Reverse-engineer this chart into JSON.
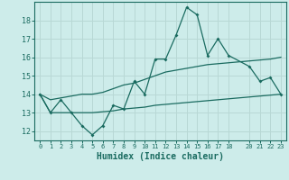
{
  "xlabel": "Humidex (Indice chaleur)",
  "bg_color": "#cdecea",
  "grid_color": "#b8d8d5",
  "line_color": "#1a6b60",
  "x_data": [
    0,
    1,
    2,
    3,
    4,
    5,
    6,
    7,
    8,
    9,
    10,
    11,
    12,
    13,
    14,
    15,
    16,
    17,
    18,
    20,
    21,
    22,
    23
  ],
  "y_main": [
    14.0,
    13.0,
    13.7,
    13.0,
    12.3,
    11.8,
    12.3,
    13.4,
    13.2,
    14.7,
    14.0,
    15.9,
    15.9,
    17.2,
    18.7,
    18.3,
    16.1,
    17.0,
    16.1,
    15.5,
    14.7,
    14.9,
    14.0
  ],
  "y_upper": [
    14.0,
    13.7,
    13.8,
    13.9,
    14.0,
    14.0,
    14.1,
    14.3,
    14.5,
    14.6,
    14.8,
    15.0,
    15.2,
    15.3,
    15.4,
    15.5,
    15.6,
    15.65,
    15.7,
    15.8,
    15.85,
    15.9,
    16.0
  ],
  "y_lower": [
    14.0,
    13.0,
    13.0,
    13.0,
    13.0,
    13.0,
    13.05,
    13.1,
    13.2,
    13.25,
    13.3,
    13.4,
    13.45,
    13.5,
    13.55,
    13.6,
    13.65,
    13.7,
    13.75,
    13.85,
    13.9,
    13.95,
    14.0
  ],
  "ylim": [
    11.5,
    19.0
  ],
  "xlim": [
    -0.5,
    23.5
  ],
  "yticks": [
    12,
    13,
    14,
    15,
    16,
    17,
    18
  ],
  "xticks": [
    0,
    1,
    2,
    3,
    4,
    5,
    6,
    7,
    8,
    9,
    10,
    11,
    12,
    13,
    14,
    15,
    16,
    17,
    18,
    20,
    21,
    22,
    23
  ]
}
